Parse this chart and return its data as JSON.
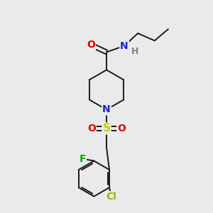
{
  "background_color": "#eaeaea",
  "atom_colors": {
    "C": "#000000",
    "H": "#808080",
    "N": "#2222cc",
    "O": "#dd0000",
    "S": "#cccc00",
    "F": "#00aa00",
    "Cl": "#88bb00"
  },
  "bond_color": "#1a1a1a",
  "bond_width": 1.4,
  "figsize": [
    3.0,
    3.0
  ],
  "dpi": 100
}
